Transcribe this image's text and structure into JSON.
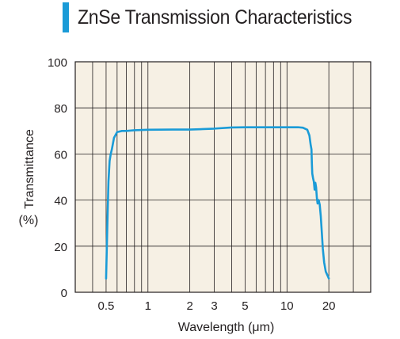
{
  "colors": {
    "accent": "#1a9bd7",
    "plot_background": "#f6f0e4",
    "curve": "#1a9bd7",
    "grid": "#231f20",
    "text": "#231f20"
  },
  "chart_data": {
    "type": "line",
    "title": "ZnSe Transmission Characteristics",
    "xlabel": "Wavelength (μm)",
    "ylabel": "Transmittance",
    "ylabel_unit": "(%)",
    "x_scale": "log",
    "xlim": [
      0.3,
      40
    ],
    "ylim": [
      0,
      100
    ],
    "x_ticks": [
      0.5,
      1,
      2,
      3,
      5,
      10,
      20
    ],
    "x_tick_labels": [
      "0.5",
      "1",
      "2",
      "3",
      "5",
      10,
      20
    ],
    "y_ticks": [
      0,
      20,
      40,
      60,
      80,
      100
    ],
    "y_tick_labels": [
      "0",
      "20",
      "40",
      "60",
      "80",
      "100"
    ],
    "x_gridlines": [
      0.4,
      0.5,
      0.6,
      0.7,
      0.8,
      0.9,
      1,
      2,
      3,
      4,
      5,
      6,
      7,
      8,
      9,
      10,
      20,
      30
    ],
    "grid": true,
    "series": [
      {
        "x": [
          0.5,
          0.51,
          0.52,
          0.53,
          0.54,
          0.55,
          0.57,
          0.6,
          0.65,
          0.7,
          0.8,
          1.0,
          1.5,
          2.0,
          2.5,
          3.0,
          4.0,
          5.0,
          7.0,
          10.0,
          12.0,
          13.0,
          14.0,
          14.5,
          14.8,
          15.0,
          15.1,
          15.2,
          15.4,
          15.6,
          15.8,
          16.0,
          16.2,
          16.4,
          16.6,
          16.9,
          17.2,
          17.5,
          17.8,
          18.1,
          18.5,
          19.0,
          20.0
        ],
        "y": [
          6,
          28,
          48,
          57,
          60,
          62,
          67,
          69.5,
          70,
          70,
          70.3,
          70.5,
          70.6,
          70.6,
          70.8,
          71,
          71.5,
          71.6,
          71.6,
          71.6,
          71.6,
          71.4,
          70.5,
          68,
          64,
          62,
          56,
          51.5,
          49.5,
          48,
          44.5,
          47.5,
          45.5,
          41,
          38.5,
          40,
          38,
          33,
          26,
          19,
          13,
          9,
          6
        ]
      }
    ]
  }
}
